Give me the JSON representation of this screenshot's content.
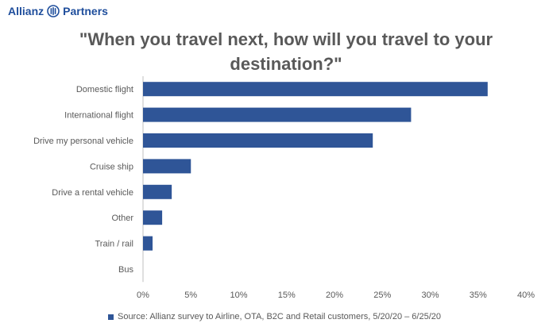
{
  "header": {
    "brand_left": "Allianz",
    "brand_right": "Partners",
    "logo_icon": "allianz-eagle-icon"
  },
  "chart_data": {
    "type": "bar",
    "orientation": "horizontal",
    "title": "\"When you travel next, how will you travel to your destination?\"",
    "categories": [
      "Domestic flight",
      "International flight",
      "Drive my personal vehicle",
      "Cruise ship",
      "Drive a rental vehicle",
      "Other",
      "Train / rail",
      "Bus"
    ],
    "series": [
      {
        "name": "Source: Allianz survey to Airline, OTA, B2C and Retail customers, 5/20/20 – 6/25/20",
        "values": [
          36,
          28,
          24,
          5,
          3,
          2,
          1,
          0
        ],
        "color": "#2f5597"
      }
    ],
    "xlim": [
      0,
      40
    ],
    "xticks": [
      0,
      5,
      10,
      15,
      20,
      25,
      30,
      35,
      40
    ],
    "tick_format": "percent",
    "grid": false,
    "legend_position": "bottom"
  }
}
